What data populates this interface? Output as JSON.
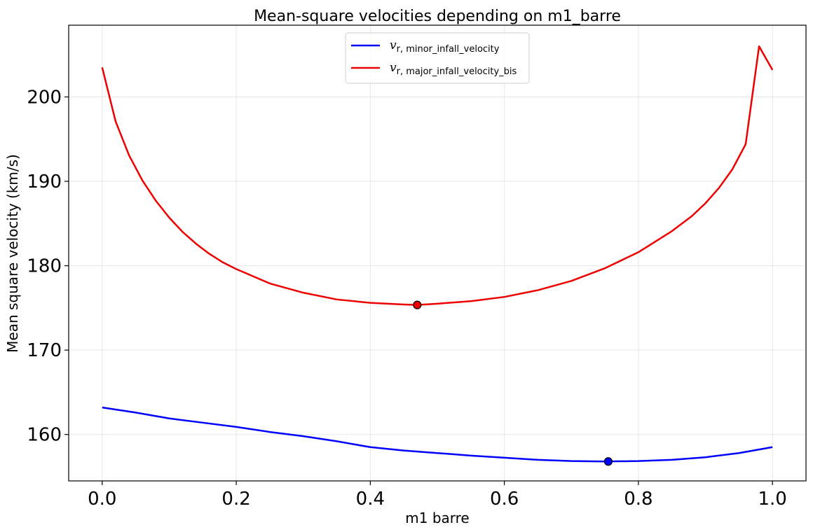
{
  "chart_data": {
    "type": "line",
    "title": "Mean-square velocities depending on m1_barre",
    "xlabel": "m1 barre",
    "ylabel": "Mean square velocity (km/s)",
    "xlim": [
      -0.05,
      1.05
    ],
    "ylim": [
      154.5,
      208.5
    ],
    "xticks": [
      0.0,
      0.2,
      0.4,
      0.6,
      0.8,
      1.0
    ],
    "xtick_labels": [
      "0.0",
      "0.2",
      "0.4",
      "0.6",
      "0.8",
      "1.0"
    ],
    "yticks": [
      160,
      170,
      180,
      190,
      200
    ],
    "ytick_labels": [
      "160",
      "170",
      "180",
      "190",
      "200"
    ],
    "grid": true,
    "legend_position": "top-center",
    "series": [
      {
        "name": "v",
        "legend_sub": "r, minor_infall_velocity",
        "color": "#0000ff",
        "x": [
          0.0,
          0.05,
          0.1,
          0.15,
          0.2,
          0.25,
          0.3,
          0.35,
          0.4,
          0.45,
          0.5,
          0.55,
          0.6,
          0.65,
          0.7,
          0.75,
          0.8,
          0.85,
          0.9,
          0.95,
          1.0
        ],
        "y": [
          163.2,
          162.6,
          161.9,
          161.4,
          160.9,
          160.3,
          159.8,
          159.2,
          158.5,
          158.1,
          157.8,
          157.5,
          157.25,
          157.0,
          156.85,
          156.8,
          156.85,
          157.0,
          157.3,
          157.8,
          158.5
        ],
        "min_marker": {
          "x": 0.755,
          "y": 156.8
        }
      },
      {
        "name": "v",
        "legend_sub": "r, major_infall_velocity_bis",
        "color": "#ee0000",
        "x": [
          0.0,
          0.02,
          0.04,
          0.06,
          0.08,
          0.1,
          0.12,
          0.14,
          0.16,
          0.18,
          0.2,
          0.25,
          0.3,
          0.35,
          0.4,
          0.45,
          0.47,
          0.5,
          0.55,
          0.6,
          0.65,
          0.7,
          0.75,
          0.8,
          0.85,
          0.88,
          0.9,
          0.92,
          0.94,
          0.96,
          0.98,
          1.0
        ],
        "y": [
          203.5,
          197.1,
          193.1,
          190.1,
          187.7,
          185.7,
          184.0,
          182.6,
          181.4,
          180.4,
          179.6,
          177.9,
          176.8,
          176.0,
          175.6,
          175.4,
          175.35,
          175.5,
          175.8,
          176.3,
          177.1,
          178.2,
          179.7,
          181.6,
          184.1,
          185.9,
          187.4,
          189.2,
          191.4,
          194.4,
          206.0,
          203.2
        ],
        "min_marker": {
          "x": 0.47,
          "y": 175.35
        }
      }
    ]
  }
}
